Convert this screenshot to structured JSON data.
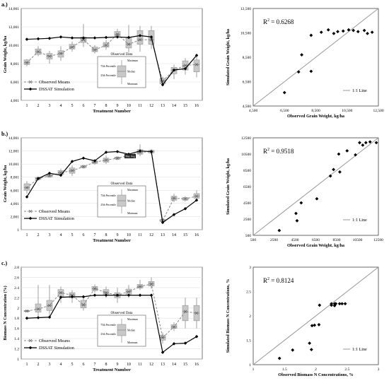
{
  "panels": [
    {
      "label": "a.)"
    },
    {
      "label": "b.)"
    },
    {
      "label": "c.)"
    }
  ],
  "chart_data": [
    {
      "type": "line",
      "panel": "a.)",
      "xlabel": "Treatment Number",
      "ylabel": "Grain Weight, kg/ha",
      "xlim": [
        0.5,
        16.5
      ],
      "ylim": [
        4001,
        14001
      ],
      "yticks": [
        4001,
        6001,
        8001,
        10001,
        12001,
        14001
      ],
      "ytick_labels": [
        "4,001",
        "6,001",
        "8,001",
        "10,001",
        "12,001",
        "14,001"
      ],
      "xticks": [
        1,
        2,
        3,
        4,
        5,
        6,
        7,
        8,
        9,
        10,
        11,
        12,
        13,
        14,
        15,
        16
      ],
      "categories": [
        "1",
        "2",
        "3",
        "4",
        "5",
        "6",
        "7",
        "8",
        "9",
        "10",
        "11",
        "12",
        "13",
        "14",
        "15",
        "16"
      ],
      "series": [
        {
          "name": "Observed Means",
          "style": "dashed-x",
          "values": [
            8100,
            9300,
            8800,
            9100,
            9800,
            10600,
            9500,
            10000,
            11200,
            10100,
            10600,
            10600,
            6100,
            7300,
            7800,
            7900
          ]
        },
        {
          "name": "DSSAT Simulation",
          "style": "solid-diamond",
          "values": [
            10650,
            10700,
            10750,
            10900,
            10800,
            10800,
            10800,
            10850,
            10900,
            10850,
            11050,
            10900,
            5700,
            7300,
            7450,
            8900
          ]
        }
      ],
      "boxes": [
        {
          "min": 7700,
          "q1": 7900,
          "med": 8100,
          "q3": 8400,
          "max": 8500
        },
        {
          "min": 8800,
          "q1": 9000,
          "med": 9300,
          "q3": 9600,
          "max": 9900
        },
        {
          "min": 8000,
          "q1": 8500,
          "med": 8800,
          "q3": 9100,
          "max": 9400
        },
        {
          "min": 8300,
          "q1": 8700,
          "med": 9100,
          "q3": 9400,
          "max": 9900
        },
        {
          "min": 9300,
          "q1": 9600,
          "med": 9800,
          "q3": 10100,
          "max": 10400
        },
        {
          "min": 9800,
          "q1": 10300,
          "med": 10600,
          "q3": 10900,
          "max": 12300
        },
        {
          "min": 9100,
          "q1": 9300,
          "med": 9500,
          "q3": 9800,
          "max": 10000
        },
        {
          "min": 9500,
          "q1": 9800,
          "med": 10000,
          "q3": 10300,
          "max": 10600
        },
        {
          "min": 10800,
          "q1": 11000,
          "med": 11200,
          "q3": 11500,
          "max": 11800
        },
        {
          "min": 9200,
          "q1": 9700,
          "med": 10100,
          "q3": 10800,
          "max": 12200
        },
        {
          "min": 9300,
          "q1": 10100,
          "med": 10600,
          "q3": 11600,
          "max": 12100
        },
        {
          "min": 9600,
          "q1": 10100,
          "med": 10600,
          "q3": 11600,
          "max": 12100
        },
        {
          "min": 5600,
          "q1": 5800,
          "med": 6100,
          "q3": 6400,
          "max": 6600
        },
        {
          "min": 6300,
          "q1": 6900,
          "med": 7300,
          "q3": 7600,
          "max": 7900
        },
        {
          "min": 6800,
          "q1": 7300,
          "med": 7800,
          "q3": 8300,
          "max": 8600
        },
        {
          "min": 6500,
          "q1": 7100,
          "med": 7900,
          "q3": 8400,
          "max": 9000
        }
      ],
      "inset": {
        "title": "Observed Data",
        "labels": [
          "Maximum",
          "75th Percentile",
          "Median",
          "25th Percentile",
          "Minimum"
        ]
      },
      "legend_position": "bottom-left"
    },
    {
      "type": "scatter",
      "panel": "a.)",
      "xlabel": "Observed  Grain Weight,  kg/ha",
      "ylabel": "Simulated Grain Weight, kg/ha",
      "xlim": [
        4500,
        12500
      ],
      "ylim": [
        4500,
        12500
      ],
      "xticks": [
        4500,
        6500,
        8500,
        10500,
        12500
      ],
      "yticks": [
        4500,
        6500,
        8500,
        10500,
        12500
      ],
      "tick_labels": [
        "4,500",
        "6,500",
        "8,500",
        "10,500",
        "12,500"
      ],
      "annotation": "R",
      "annotation_sup": "2",
      "annotation_value": " = 0.6268",
      "one_to_one_label": "1:1 Line",
      "points": [
        [
          6500,
          5600
        ],
        [
          7400,
          7300
        ],
        [
          7600,
          8700
        ],
        [
          8200,
          7350
        ],
        [
          8200,
          10300
        ],
        [
          8850,
          10550
        ],
        [
          9300,
          10750
        ],
        [
          9650,
          10450
        ],
        [
          9900,
          10600
        ],
        [
          10250,
          10650
        ],
        [
          10600,
          10750
        ],
        [
          10900,
          10700
        ],
        [
          11200,
          10600
        ],
        [
          11600,
          10700
        ],
        [
          11800,
          10450
        ],
        [
          12100,
          10550
        ]
      ]
    },
    {
      "type": "line",
      "panel": "b.)",
      "xlabel": "Treatment Number",
      "ylabel": "Grain Weight, kg/ha",
      "xlim": [
        0.5,
        16.5
      ],
      "ylim": [
        1,
        14001
      ],
      "yticks": [
        1,
        2001,
        4001,
        6001,
        8001,
        10001,
        12001,
        14001
      ],
      "ytick_labels": [
        "1",
        "2,001",
        "4,001",
        "6,001",
        "8,001",
        "10,001",
        "12,001",
        "14,001"
      ],
      "xticks": [
        1,
        2,
        3,
        4,
        5,
        6,
        7,
        8,
        9,
        10,
        11,
        12,
        13,
        14,
        15,
        16
      ],
      "categories": [
        "1",
        "2",
        "3",
        "4",
        "5",
        "6",
        "7",
        "8",
        "9",
        "10",
        "11",
        "12",
        "13",
        "14",
        "15",
        "16"
      ],
      "series": [
        {
          "name": "Observed Means",
          "style": "dashed-x",
          "values": [
            6400,
            7800,
            8200,
            8700,
            9000,
            9600,
            10300,
            10600,
            10900,
            11300,
            11800,
            11900,
            1400,
            4800,
            4700,
            5100
          ]
        },
        {
          "name": "DSSAT Simulation",
          "style": "solid-diamond",
          "values": [
            5000,
            7800,
            8600,
            8300,
            10400,
            10900,
            10500,
            11800,
            11900,
            11500,
            12000,
            11900,
            1100,
            2300,
            3200,
            4500
          ]
        }
      ],
      "boxes": [
        {
          "min": 5500,
          "q1": 6000,
          "med": 6400,
          "q3": 7000,
          "max": 7400
        },
        {
          "min": 7500,
          "q1": 7650,
          "med": 7800,
          "q3": 7950,
          "max": 8100
        },
        {
          "min": 7900,
          "q1": 8050,
          "med": 8200,
          "q3": 8350,
          "max": 8500
        },
        {
          "min": 8100,
          "q1": 8400,
          "med": 8700,
          "q3": 9000,
          "max": 9300
        },
        {
          "min": 8200,
          "q1": 8600,
          "med": 9000,
          "q3": 9400,
          "max": 9800
        },
        {
          "min": 9300,
          "q1": 9450,
          "med": 9600,
          "q3": 9750,
          "max": 9900
        },
        {
          "min": 9900,
          "q1": 10100,
          "med": 10300,
          "q3": 10500,
          "max": 10700
        },
        {
          "min": 10000,
          "q1": 10300,
          "med": 10600,
          "q3": 10900,
          "max": 11300
        },
        {
          "min": 10600,
          "q1": 10750,
          "med": 10900,
          "q3": 11050,
          "max": 11200
        },
        {
          "min": 11000,
          "q1": 11150,
          "med": 11300,
          "q3": 11450,
          "max": 11600
        },
        {
          "min": 11200,
          "q1": 11500,
          "med": 11800,
          "q3": 12200,
          "max": 13000
        },
        {
          "min": 11500,
          "q1": 11700,
          "med": 11900,
          "q3": 12100,
          "max": 12300
        },
        {
          "min": 1100,
          "q1": 1250,
          "med": 1400,
          "q3": 1550,
          "max": 1700
        },
        {
          "min": 4200,
          "q1": 4500,
          "med": 4800,
          "q3": 5100,
          "max": 5500
        },
        {
          "min": 4300,
          "q1": 4500,
          "med": 4700,
          "q3": 4900,
          "max": 5100
        },
        {
          "min": 4500,
          "q1": 4800,
          "med": 5100,
          "q3": 5500,
          "max": 6000
        }
      ],
      "inset": {
        "title": "Observed Data",
        "labels": [
          "Maximum",
          "75th Percentile",
          "Median",
          "25th Percentile",
          "Minimum"
        ]
      },
      "tag_label": "Max Avg",
      "legend_position": "bottom-left"
    },
    {
      "type": "scatter",
      "panel": "b.)",
      "xlabel": "Observed Grain Weight, kg/ha",
      "ylabel": "Simulated Grain Weight, kg/ha",
      "xlim": [
        500,
        12500
      ],
      "ylim": [
        500,
        12500
      ],
      "xticks": [
        500,
        2500,
        4500,
        6500,
        8500,
        10500,
        12500
      ],
      "yticks": [
        500,
        2500,
        4500,
        6500,
        8500,
        10500,
        12500
      ],
      "tick_labels": [
        "500",
        "2500",
        "4500",
        "6500",
        "8500",
        "10500",
        "12500"
      ],
      "annotation": "R",
      "annotation_sup": "2",
      "annotation_value": " = 0.9518",
      "one_to_one_label": "1:1 Line",
      "points": [
        [
          3000,
          1100
        ],
        [
          4600,
          3200
        ],
        [
          4700,
          2300
        ],
        [
          5100,
          4500
        ],
        [
          6600,
          5000
        ],
        [
          7900,
          7800
        ],
        [
          8200,
          8600
        ],
        [
          8700,
          10500
        ],
        [
          8800,
          8300
        ],
        [
          9500,
          10900
        ],
        [
          10300,
          10400
        ],
        [
          10700,
          11900
        ],
        [
          11000,
          11600
        ],
        [
          11300,
          11900
        ],
        [
          11700,
          12000
        ],
        [
          12300,
          11900
        ]
      ]
    },
    {
      "type": "line",
      "panel": "c.)",
      "xlabel": "Treatment Number",
      "ylabel": "Biomass N Concentration (%)",
      "xlim": [
        0.5,
        16.5
      ],
      "ylim": [
        1,
        2.8
      ],
      "yticks": [
        1,
        1.2,
        1.4,
        1.6,
        1.8,
        2,
        2.2,
        2.4,
        2.6,
        2.8
      ],
      "ytick_labels": [
        "1",
        "1.2",
        "1.4",
        "1.6",
        "1.8",
        "2",
        "2.2",
        "2.4",
        "2.6",
        "2.8"
      ],
      "xticks": [
        1,
        2,
        3,
        4,
        5,
        6,
        7,
        8,
        9,
        10,
        11,
        12,
        13,
        14,
        15,
        16
      ],
      "categories": [
        "1",
        "2",
        "3",
        "4",
        "5",
        "6",
        "7",
        "8",
        "9",
        "10",
        "11",
        "12",
        "13",
        "14",
        "15",
        "16"
      ],
      "series": [
        {
          "name": "Observed Means",
          "style": "dashed-x",
          "values": [
            1.94,
            1.98,
            2.05,
            2.3,
            2.25,
            2.06,
            2.38,
            2.3,
            2.25,
            2.32,
            2.42,
            2.47,
            1.42,
            1.63,
            1.93,
            1.9
          ]
        },
        {
          "name": "DSSAT Simulation",
          "style": "solid-diamond",
          "values": [
            1.8,
            1.81,
            1.82,
            2.21,
            2.22,
            2.22,
            2.25,
            2.25,
            2.25,
            2.25,
            2.25,
            2.25,
            1.13,
            1.3,
            1.31,
            1.44
          ]
        }
      ],
      "boxes": [
        {
          "min": 1.92,
          "q1": 1.93,
          "med": 1.94,
          "q3": 1.95,
          "max": 1.96
        },
        {
          "min": 1.8,
          "q1": 1.92,
          "med": 1.98,
          "q3": 2.08,
          "max": 2.45
        },
        {
          "min": 1.85,
          "q1": 1.95,
          "med": 2.05,
          "q3": 2.15,
          "max": 2.45
        },
        {
          "min": 2.1,
          "q1": 2.22,
          "med": 2.3,
          "q3": 2.36,
          "max": 2.42
        },
        {
          "min": 2.1,
          "q1": 2.2,
          "med": 2.25,
          "q3": 2.3,
          "max": 2.35
        },
        {
          "min": 1.95,
          "q1": 2.0,
          "med": 2.06,
          "q3": 2.15,
          "max": 2.25
        },
        {
          "min": 2.3,
          "q1": 2.34,
          "med": 2.38,
          "q3": 2.42,
          "max": 2.46
        },
        {
          "min": 2.2,
          "q1": 2.25,
          "med": 2.3,
          "q3": 2.36,
          "max": 2.42
        },
        {
          "min": 2.1,
          "q1": 2.2,
          "med": 2.25,
          "q3": 2.3,
          "max": 2.4
        },
        {
          "min": 2.2,
          "q1": 2.27,
          "med": 2.32,
          "q3": 2.37,
          "max": 2.45
        },
        {
          "min": 2.35,
          "q1": 2.39,
          "med": 2.42,
          "q3": 2.46,
          "max": 2.55
        },
        {
          "min": 2.38,
          "q1": 2.43,
          "med": 2.47,
          "q3": 2.52,
          "max": 2.6
        },
        {
          "min": 1.3,
          "q1": 1.37,
          "med": 1.42,
          "q3": 1.47,
          "max": 1.52
        },
        {
          "min": 1.55,
          "q1": 1.6,
          "med": 1.63,
          "q3": 1.67,
          "max": 1.72
        },
        {
          "min": 1.6,
          "q1": 1.75,
          "med": 1.93,
          "q3": 2.05,
          "max": 2.2
        },
        {
          "min": 1.6,
          "q1": 1.75,
          "med": 1.9,
          "q3": 2.05,
          "max": 2.2
        }
      ],
      "inset": {
        "title": "Observed Data",
        "labels": [
          "Maximum",
          "75th Percentile",
          "Median",
          "25th Percentile",
          "Minimum"
        ]
      },
      "legend_position": "bottom-left"
    },
    {
      "type": "scatter",
      "panel": "c.)",
      "xlabel": "Observed Biomass  N Concentrations, %",
      "ylabel": "Simulated Biomass N Concentrations, %",
      "xlim": [
        1,
        3
      ],
      "ylim": [
        1,
        3
      ],
      "xticks": [
        1,
        1.5,
        2,
        2.5,
        3
      ],
      "yticks": [
        1,
        1.5,
        2,
        2.5,
        3
      ],
      "tick_labels": [
        "1",
        "1.5",
        "2",
        "2.5",
        "3"
      ],
      "annotation": "R",
      "annotation_sup": "2",
      "annotation_value": " =  0.8124",
      "one_to_one_label": "1:1 Line",
      "points": [
        [
          1.42,
          1.13
        ],
        [
          1.63,
          1.3
        ],
        [
          1.9,
          1.44
        ],
        [
          1.93,
          1.31
        ],
        [
          1.94,
          1.8
        ],
        [
          1.98,
          1.81
        ],
        [
          2.05,
          1.82
        ],
        [
          2.06,
          2.22
        ],
        [
          2.25,
          2.22
        ],
        [
          2.25,
          2.25
        ],
        [
          2.3,
          2.21
        ],
        [
          2.3,
          2.25
        ],
        [
          2.32,
          2.25
        ],
        [
          2.38,
          2.25
        ],
        [
          2.42,
          2.25
        ],
        [
          2.47,
          2.25
        ]
      ]
    }
  ]
}
